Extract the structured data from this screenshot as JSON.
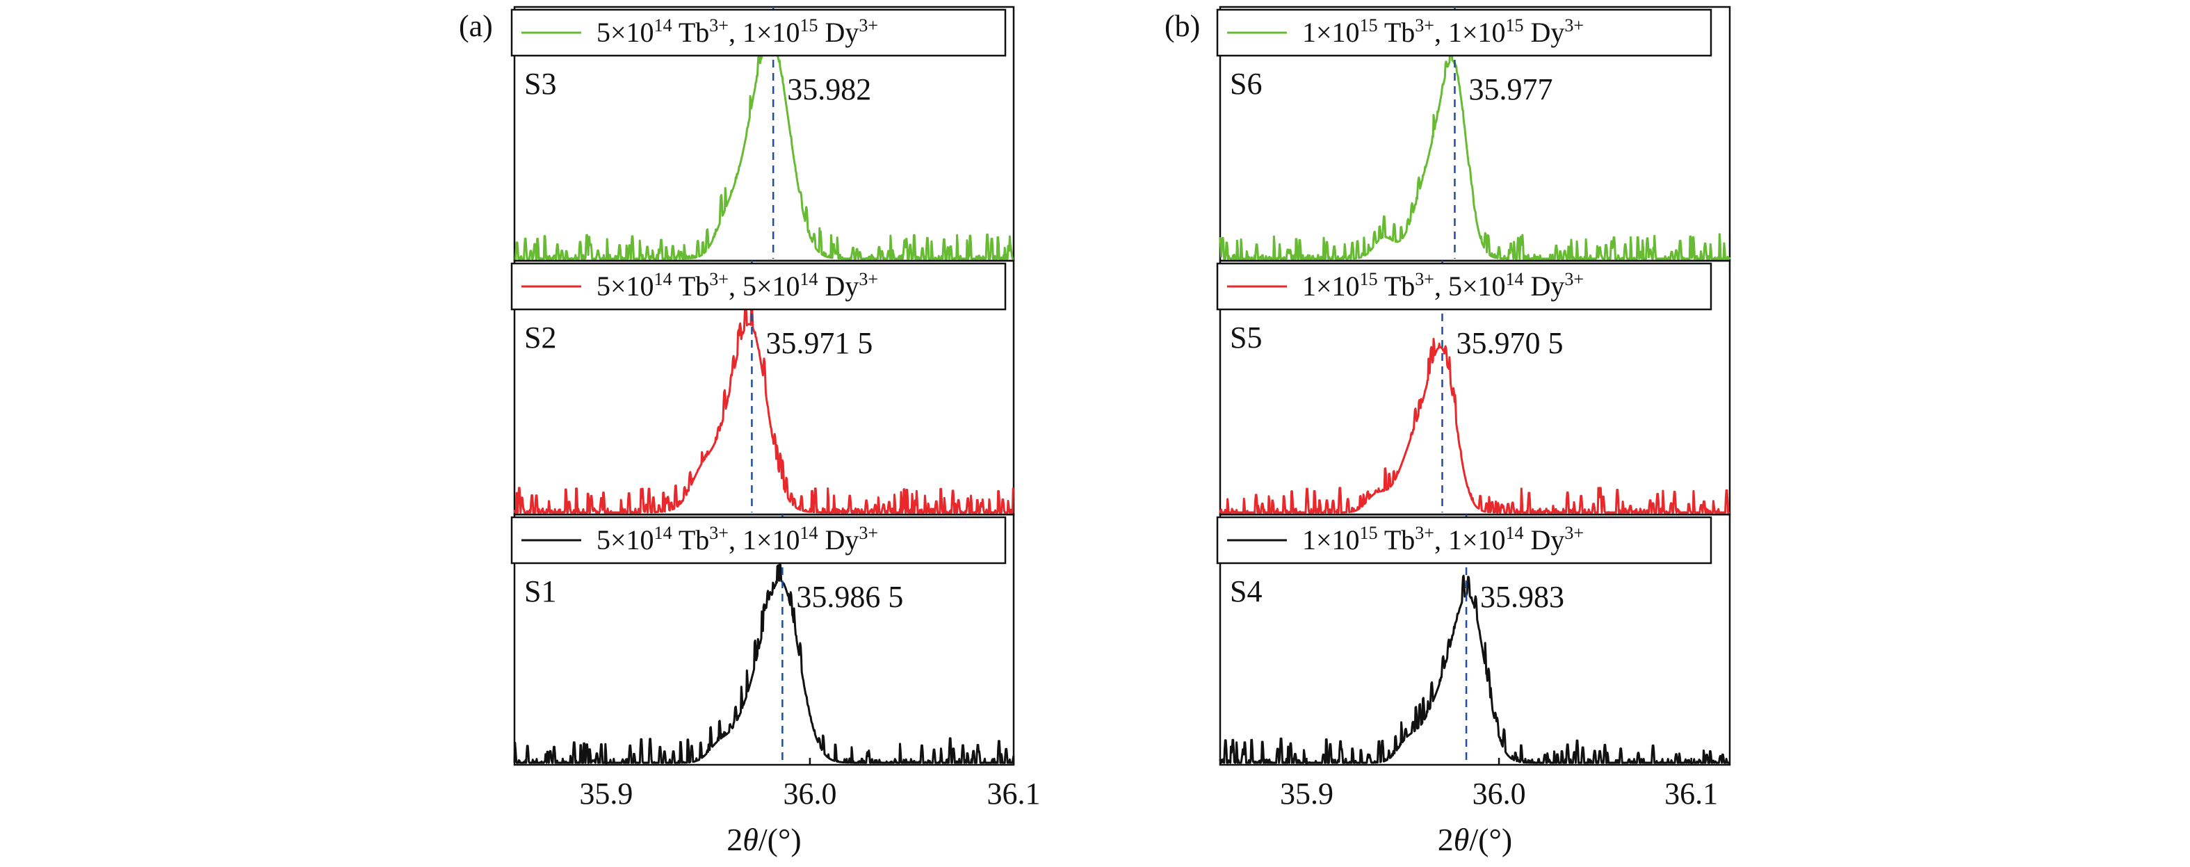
{
  "figure": {
    "panels": [
      {
        "id": "a",
        "label": "(a)"
      },
      {
        "id": "b",
        "label": "(b)"
      }
    ]
  },
  "chart_data": [
    {
      "type": "line",
      "panel": "(a)",
      "xlabel": "2θ/(°)",
      "xlim": [
        35.855,
        36.1
      ],
      "xticks": [
        35.9,
        36.0,
        36.1
      ],
      "xtick_labels": [
        "35.9",
        "36.0",
        "36.1"
      ],
      "y_axis": "stacked intensity (arbitrary, no ticks)",
      "legend_placement": "top-left of each subplot",
      "subplots": [
        {
          "sample": "S3",
          "color": "#66bb33",
          "legend": {
            "a": "5×10",
            "ae": "14",
            "b": " Tb",
            "be": "3+",
            "c": ", 1×10",
            "ce": "15",
            "d": " Dy",
            "de": "3+"
          },
          "peak_position": 35.982,
          "peak_label": "35.982",
          "noise_seed": 11,
          "peaks": [
            [
              35.9825,
              0.8,
              0.0085
            ],
            [
              35.971,
              0.33,
              0.009
            ],
            [
              35.958,
              0.08,
              0.005
            ]
          ]
        },
        {
          "sample": "S2",
          "color": "#e8282b",
          "legend": {
            "a": "5×10",
            "ae": "14",
            "b": " Tb",
            "be": "3+",
            "c": ", 5×10",
            "ce": "14",
            "d": " Dy",
            "de": "3+"
          },
          "peak_position": 35.9715,
          "peak_label": "35.971 5",
          "noise_seed": 23,
          "peaks": [
            [
              35.9718,
              0.55,
              0.0075
            ],
            [
              35.963,
              0.36,
              0.0115
            ],
            [
              35.946,
              0.08,
              0.005
            ]
          ]
        },
        {
          "sample": "S1",
          "color": "#111111",
          "legend": {
            "a": "5×10",
            "ae": "14",
            "b": " Tb",
            "be": "3+",
            "c": ", 1×10",
            "ce": "14",
            "d": " Dy",
            "de": "3+"
          },
          "peak_position": 35.9865,
          "peak_label": "35.986 5",
          "noise_seed": 37,
          "peaks": [
            [
              35.9865,
              0.74,
              0.0085
            ],
            [
              35.972,
              0.22,
              0.009
            ],
            [
              35.955,
              0.06,
              0.005
            ]
          ]
        }
      ]
    },
    {
      "type": "line",
      "panel": "(b)",
      "xlabel": "2θ/(°)",
      "xlim": [
        35.855,
        36.12
      ],
      "xticks": [
        35.9,
        36.0,
        36.1
      ],
      "xtick_labels": [
        "35.9",
        "36.0",
        "36.1"
      ],
      "y_axis": "stacked intensity (arbitrary, no ticks)",
      "legend_placement": "top-left of each subplot",
      "subplots": [
        {
          "sample": "S6",
          "color": "#66bb33",
          "legend": {
            "a": "1×10",
            "ae": "15",
            "b": " Tb",
            "be": "3+",
            "c": ", 1×10",
            "ce": "15",
            "d": " Dy",
            "de": "3+"
          },
          "peak_position": 35.977,
          "peak_label": "35.977",
          "noise_seed": 53,
          "peaks": [
            [
              35.977,
              0.72,
              0.0065
            ],
            [
              35.965,
              0.38,
              0.0085
            ],
            [
              35.94,
              0.09,
              0.005
            ]
          ]
        },
        {
          "sample": "S5",
          "color": "#e8282b",
          "legend": {
            "a": "1×10",
            "ae": "15",
            "b": " Tb",
            "be": "3+",
            "c": ", 5×10",
            "ce": "14",
            "d": " Dy",
            "de": "3+"
          },
          "peak_position": 35.9705,
          "peak_label": "35.970 5",
          "noise_seed": 71,
          "peaks": [
            [
              35.971,
              0.6,
              0.0068
            ],
            [
              35.958,
              0.33,
              0.009
            ],
            [
              35.936,
              0.07,
              0.005
            ]
          ]
        },
        {
          "sample": "S4",
          "color": "#111111",
          "legend": {
            "a": "1×10",
            "ae": "15",
            "b": " Tb",
            "be": "3+",
            "c": ", 1×10",
            "ce": "14",
            "d": " Dy",
            "de": "3+"
          },
          "peak_position": 35.983,
          "peak_label": "35.983",
          "noise_seed": 89,
          "peaks": [
            [
              35.985,
              0.66,
              0.008
            ],
            [
              35.97,
              0.26,
              0.0095
            ],
            [
              35.952,
              0.07,
              0.005
            ]
          ]
        }
      ]
    }
  ]
}
